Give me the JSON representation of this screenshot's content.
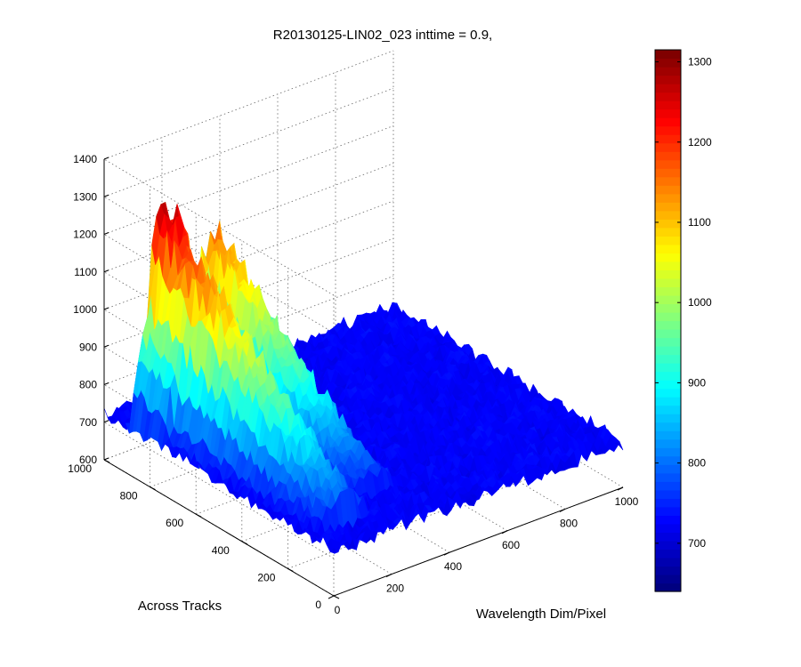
{
  "chart_data": {
    "type": "surface",
    "title": "R20130125-LIN02_023 inttime = 0.9,",
    "xlabel": "Wavelength Dim/Pixel",
    "ylabel": "Across Tracks",
    "zlabel": "",
    "xlim": [
      0,
      1000
    ],
    "ylim": [
      0,
      1000
    ],
    "zlim": [
      600,
      1400
    ],
    "x_ticks": [
      "0",
      "200",
      "400",
      "600",
      "800",
      "1000"
    ],
    "y_ticks": [
      "0",
      "200",
      "400",
      "600",
      "800",
      "1000"
    ],
    "z_ticks": [
      "600",
      "700",
      "800",
      "900",
      "1000",
      "1100",
      "1200",
      "1300",
      "1400"
    ],
    "grid": true,
    "colormap": "jet",
    "background_level": 720,
    "features": [
      {
        "x_center": 120,
        "x_width": 70,
        "y_start": 100,
        "y_end": 900,
        "peak": 1270,
        "near_edge": 790
      },
      {
        "x_center": 290,
        "x_width": 70,
        "y_start": 200,
        "y_end": 900,
        "peak": 1170,
        "near_edge": 760
      },
      {
        "x_center": 30,
        "x_width": 20,
        "y_start": 750,
        "y_end": 900,
        "peak": 840,
        "near_edge": 800
      }
    ],
    "colorbar": {
      "range": [
        640,
        1315
      ],
      "ticks": [
        "700",
        "800",
        "900",
        "1000",
        "1100",
        "1200",
        "1300"
      ]
    }
  }
}
